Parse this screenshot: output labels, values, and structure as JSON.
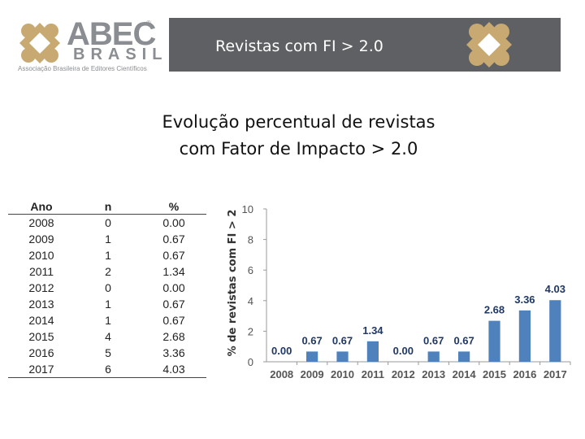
{
  "logo": {
    "name": "ABEC",
    "registered": "®",
    "subtitle": "BRASIL",
    "tagline": "Associação Brasileira de Editores Científicos"
  },
  "banner": {
    "title": "Revistas com FI > 2.0",
    "color": "#5f6063"
  },
  "heading": {
    "line1": "Evolução percentual de revistas",
    "line2": "com Fator de Impacto > 2.0"
  },
  "table": {
    "headers": [
      "Ano",
      "n",
      "%"
    ],
    "rows": [
      [
        "2008",
        "0",
        "0.00"
      ],
      [
        "2009",
        "1",
        "0.67"
      ],
      [
        "2010",
        "1",
        "0.67"
      ],
      [
        "2011",
        "2",
        "1.34"
      ],
      [
        "2012",
        "0",
        "0.00"
      ],
      [
        "2013",
        "1",
        "0.67"
      ],
      [
        "2014",
        "1",
        "0.67"
      ],
      [
        "2015",
        "4",
        "2.68"
      ],
      [
        "2016",
        "5",
        "3.36"
      ],
      [
        "2017",
        "6",
        "4.03"
      ]
    ]
  },
  "chart_data": {
    "type": "bar",
    "title": "",
    "xlabel": "",
    "ylabel": "% de revistas com FI > 2",
    "categories": [
      "2008",
      "2009",
      "2010",
      "2011",
      "2012",
      "2013",
      "2014",
      "2015",
      "2016",
      "2017"
    ],
    "values": [
      0.0,
      0.67,
      0.67,
      1.34,
      0.0,
      0.67,
      0.67,
      2.68,
      3.36,
      4.03
    ],
    "data_labels": [
      "0.00",
      "0.67",
      "0.67",
      "1.34",
      "0.00",
      "0.67",
      "0.67",
      "2.68",
      "3.36",
      "4.03"
    ],
    "ylim": [
      0,
      10
    ],
    "yticks": [
      0,
      2,
      4,
      6,
      8,
      10
    ],
    "grid": false,
    "bar_color": "#4f81bd"
  }
}
